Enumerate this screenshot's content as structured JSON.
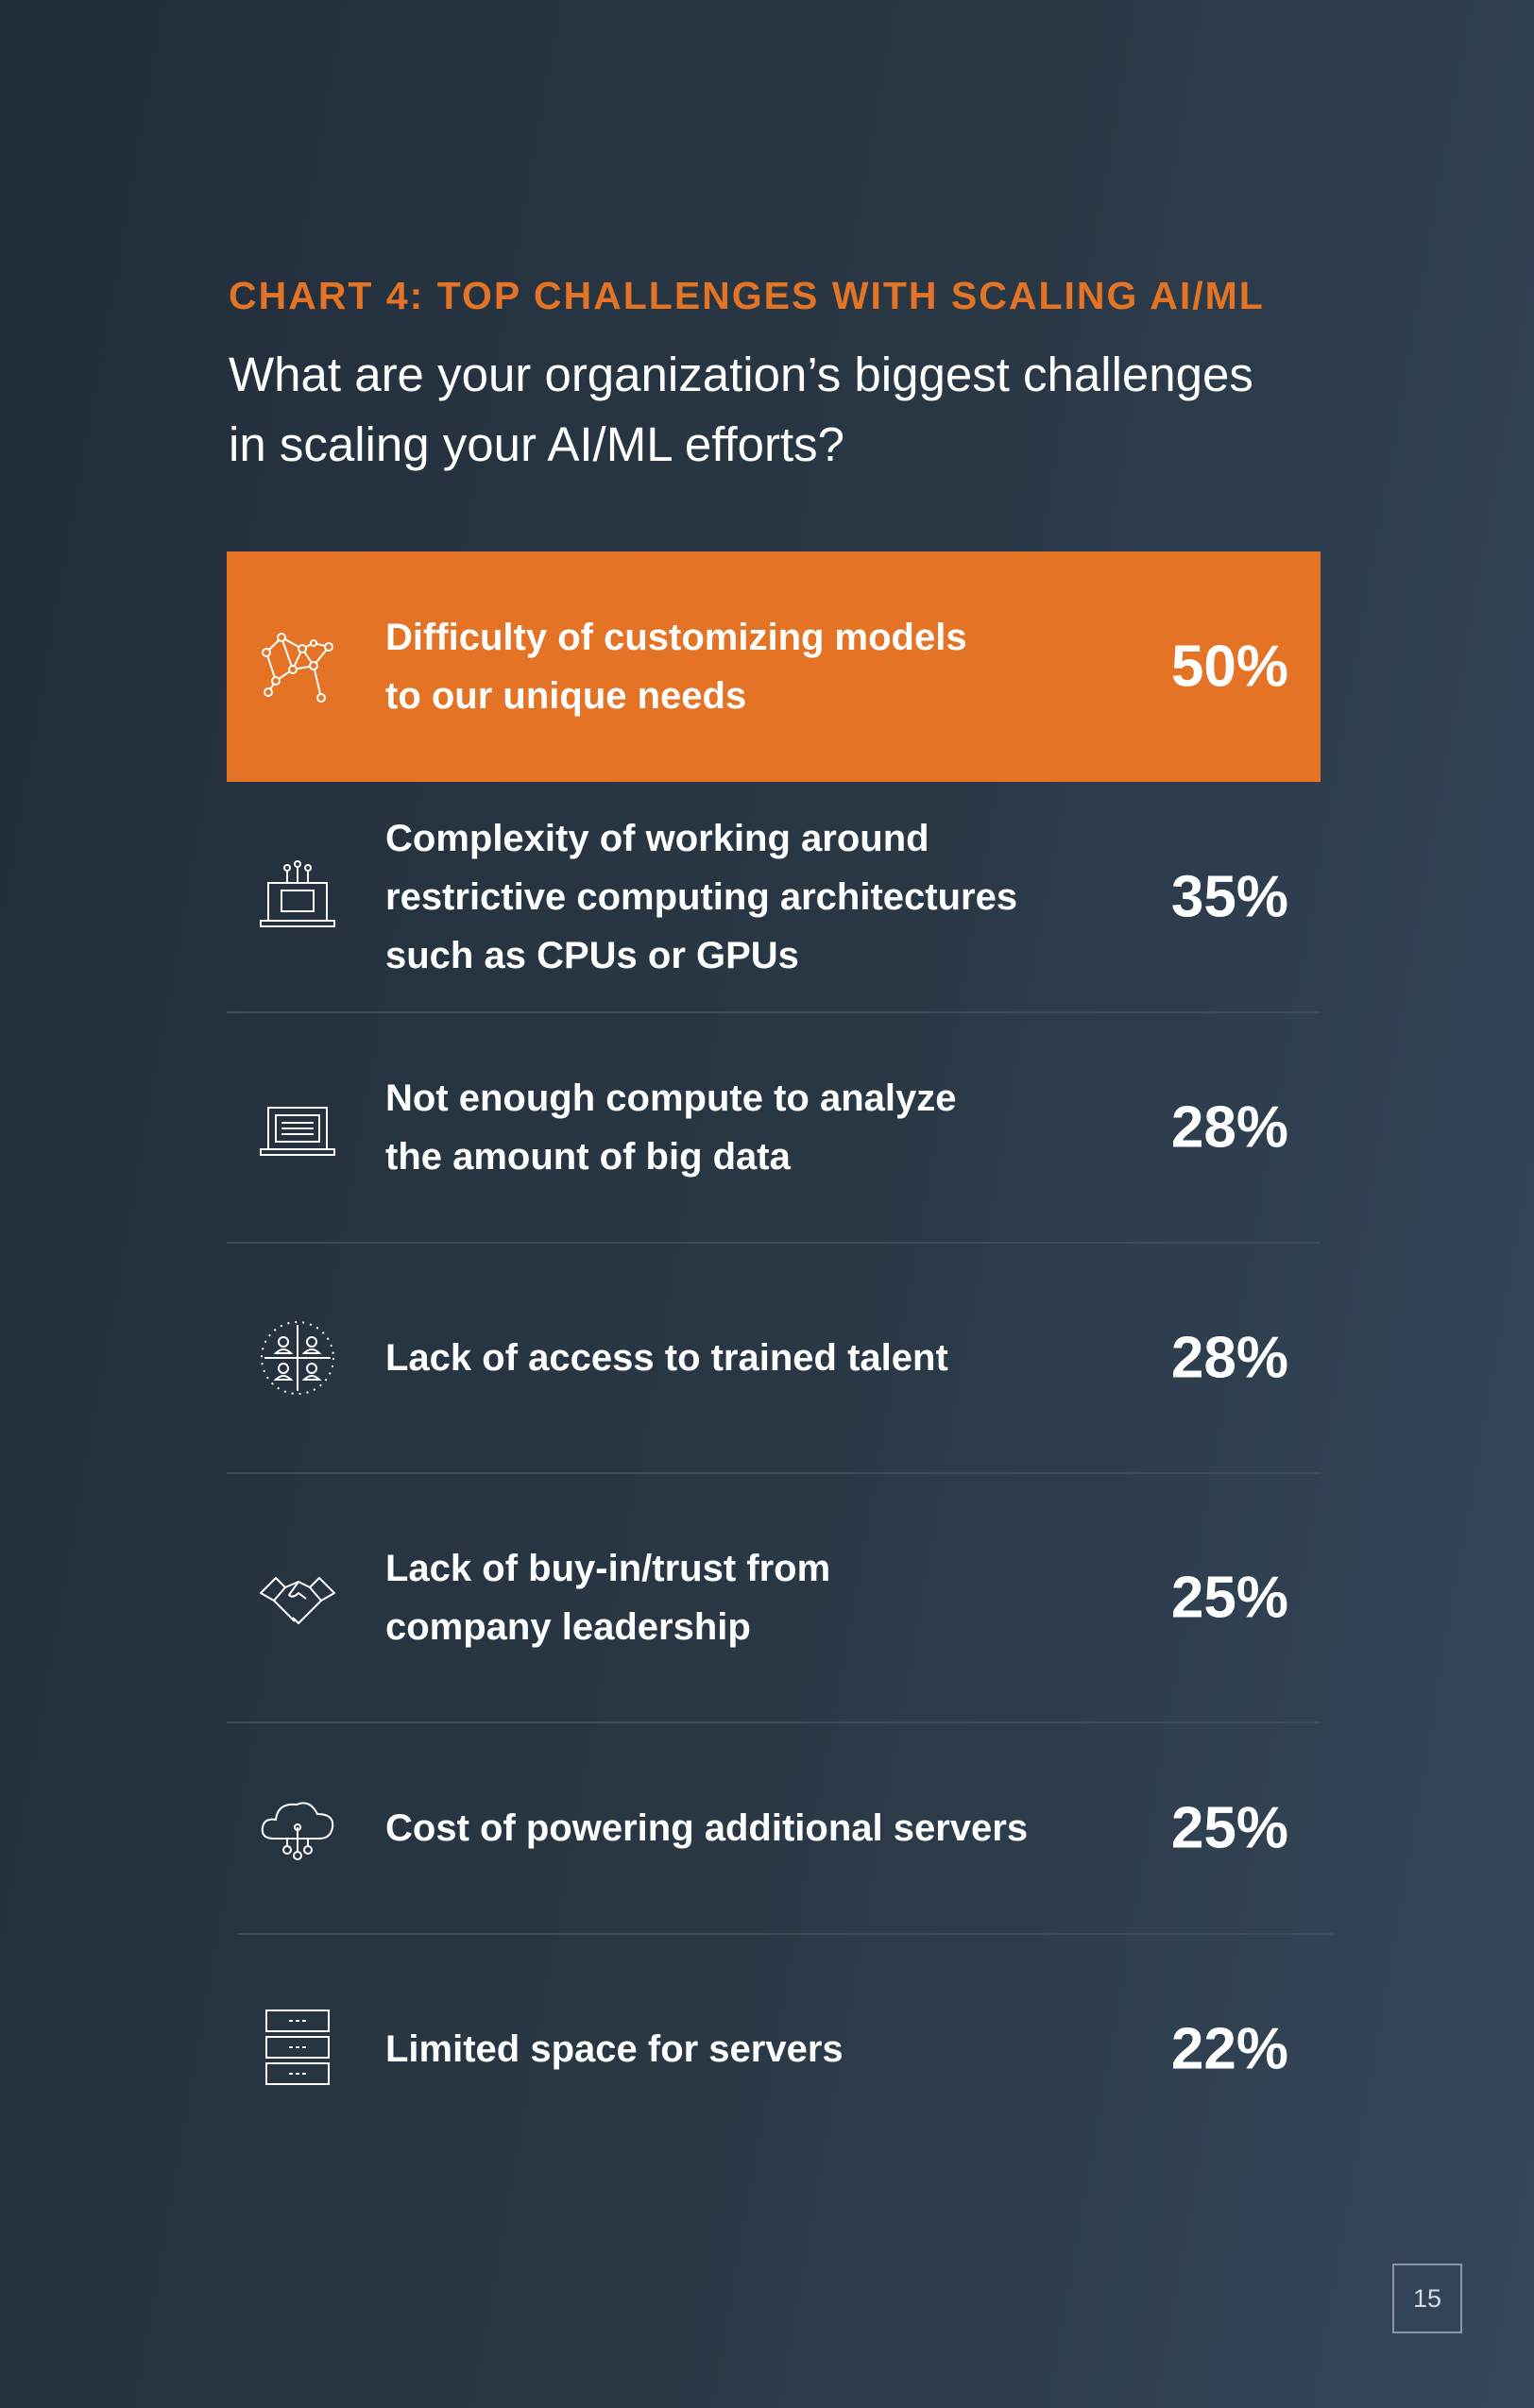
{
  "chart_data": {
    "type": "table",
    "title": "CHART 4: TOP CHALLENGES WITH SCALING AI/ML",
    "subtitle": "What are your organization’s biggest challenges in scaling your AI/ML efforts?",
    "categories": [
      "Difficulty of customizing models to our unique needs",
      "Complexity of working around restrictive computing architectures such as CPUs or GPUs",
      "Not enough compute to analyze the amount of big data",
      "Lack of access to trained talent",
      "Lack of buy-in/trust from company leadership",
      "Cost of powering additional servers",
      "Limited space for servers"
    ],
    "values": [
      50,
      35,
      28,
      28,
      25,
      25,
      22
    ],
    "value_suffix": "%",
    "highlight_color": "#e47325"
  },
  "rows": [
    {
      "label": "Difficulty of customizing models\nto our unique needs",
      "value": "50%",
      "icon": "network-nodes-icon",
      "highlight": true
    },
    {
      "label": "Complexity of working around\nrestrictive computing architectures\nsuch as CPUs or GPUs",
      "value": "35%",
      "icon": "laptop-circuit-icon",
      "highlight": false
    },
    {
      "label": "Not enough compute to analyze\nthe amount of big data",
      "value": "28%",
      "icon": "laptop-data-icon",
      "highlight": false
    },
    {
      "label": "Lack of access to trained talent",
      "value": "28%",
      "icon": "people-grid-icon",
      "highlight": false
    },
    {
      "label": "Lack of buy-in/trust from\ncompany leadership",
      "value": "25%",
      "icon": "handshake-icon",
      "highlight": false
    },
    {
      "label": "Cost of powering additional servers",
      "value": "25%",
      "icon": "cloud-network-icon",
      "highlight": false
    },
    {
      "label": "Limited space for servers",
      "value": "22%",
      "icon": "server-rack-icon",
      "highlight": false
    }
  ],
  "page_number": "15",
  "colors": {
    "accent": "#e37325",
    "background": "#2a3846"
  }
}
